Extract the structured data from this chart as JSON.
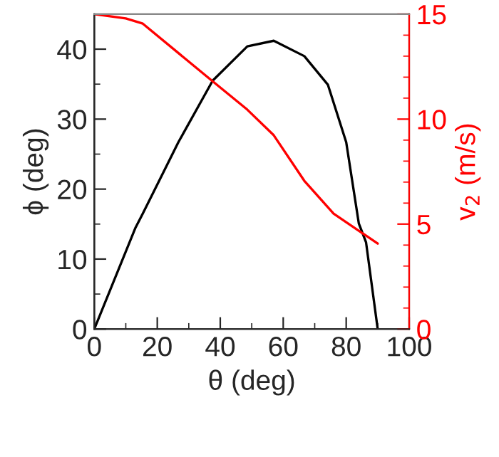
{
  "chart_data": {
    "type": "line",
    "xlabel": "θ (deg)",
    "ylabel": "ϕ (deg)",
    "y2label": "v$_{2}$ (m/s)",
    "xlim": [
      0,
      100
    ],
    "xticks": [
      0,
      20,
      40,
      60,
      80,
      100
    ],
    "ylim": [
      0,
      45
    ],
    "yticks": [
      0,
      10,
      20,
      30,
      40
    ],
    "y2lim": [
      0,
      15
    ],
    "y2ticks": [
      0,
      5,
      10,
      15
    ],
    "grid": false,
    "legend": false,
    "marker": "none",
    "line_style": "solid",
    "series": [
      {
        "color": "#000000",
        "x": [
          0,
          13.1,
          15.4,
          26.7,
          37.6,
          48.6,
          57,
          66.7,
          74.2,
          80,
          84,
          86.3,
          90
        ],
        "values": [
          0,
          14.5,
          16.5,
          26.7,
          35.5,
          40.4,
          41.2,
          39,
          34.9,
          26.7,
          15.1,
          12.4,
          0
        ]
      },
      {
        "color": "#ff0000",
        "axis": "y2",
        "x": [
          0,
          10,
          15.4,
          37.6,
          48.6,
          57,
          66.7,
          76,
          90
        ],
        "values": [
          15,
          14.8,
          14.55,
          11.8,
          10.45,
          9.23,
          7.06,
          5.5,
          4.07
        ]
      }
    ]
  }
}
